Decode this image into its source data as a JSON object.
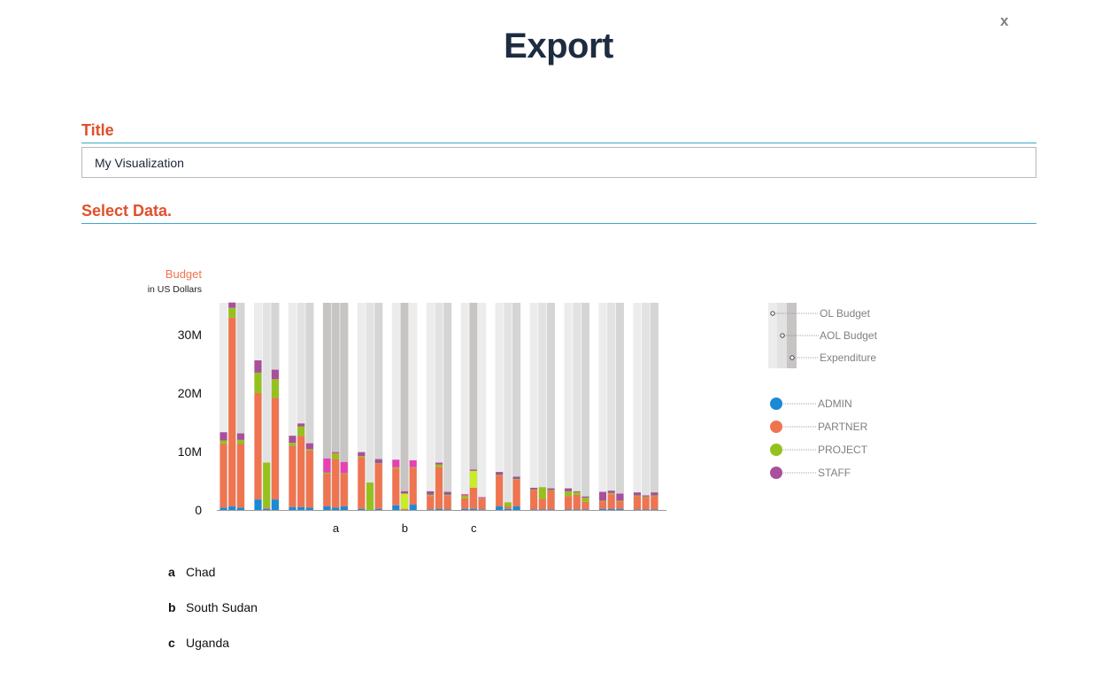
{
  "header": {
    "title": "Export",
    "close_label": "x"
  },
  "form": {
    "title_label": "Title",
    "title_value": "My Visualization",
    "select_label": "Select Data."
  },
  "chart_data": {
    "type": "bar",
    "ylabel": "Budget",
    "ylabel_unit": "in US Dollars",
    "ylim": [
      0,
      35000000
    ],
    "y_ticks": [
      {
        "value": 0,
        "label": "0"
      },
      {
        "value": 10000000,
        "label": "10M"
      },
      {
        "value": 20000000,
        "label": "20M"
      },
      {
        "value": 30000000,
        "label": "30M"
      }
    ],
    "grid": false,
    "stack_order": [
      "ADMIN",
      "PARTNER",
      "PROJECT",
      "STAFF"
    ],
    "colors": {
      "ADMIN": "#1b8ad6",
      "PARTNER": "#ef7450",
      "PROJECT": "#95c11f",
      "STAFF": "#a94f9c",
      "OL Budget": "#ececec",
      "AOL Budget": "#e2e2e2",
      "Expenditure": "#d5d5d5",
      "highlight_background": "#c7c4c4",
      "highlight_staff": "#e840b4",
      "highlight_project": "#c9ec28"
    },
    "budget_legend": [
      "OL Budget",
      "AOL Budget",
      "Expenditure"
    ],
    "category_legend": [
      "ADMIN",
      "PARTNER",
      "PROJECT",
      "STAFF"
    ],
    "groups": [
      {
        "marker": "",
        "bars": [
          {
            "ADMIN": 0.4,
            "PARTNER": 10.9,
            "PROJECT": 0.6,
            "STAFF": 1.4
          },
          {
            "ADMIN": 0.6,
            "PARTNER": 32.3,
            "PROJECT": 1.7,
            "STAFF": 0.9
          },
          {
            "ADMIN": 0.4,
            "PARTNER": 10.9,
            "PROJECT": 0.7,
            "STAFF": 1.1
          }
        ]
      },
      {
        "marker": "",
        "bars": [
          {
            "ADMIN": 1.8,
            "PARTNER": 18.2,
            "PROJECT": 3.5,
            "STAFF": 2.1
          },
          {
            "ADMIN": 0.2,
            "PARTNER": 0.2,
            "PROJECT": 7.7,
            "STAFF": 0
          },
          {
            "ADMIN": 1.8,
            "PARTNER": 17.4,
            "PROJECT": 3.2,
            "STAFF": 1.6
          }
        ]
      },
      {
        "marker": "",
        "bars": [
          {
            "ADMIN": 0.5,
            "PARTNER": 10.5,
            "PROJECT": 0.5,
            "STAFF": 1.2
          },
          {
            "ADMIN": 0.5,
            "PARTNER": 12.2,
            "PROJECT": 1.6,
            "STAFF": 0.5
          },
          {
            "ADMIN": 0.4,
            "PARTNER": 9.8,
            "PROJECT": 0.2,
            "STAFF": 1.0
          }
        ]
      },
      {
        "marker": "a",
        "highlight": "all",
        "bars": [
          {
            "ADMIN": 0.6,
            "PARTNER": 5.6,
            "PROJECT": 0.2,
            "STAFF": 2.4
          },
          {
            "ADMIN": 0.4,
            "PARTNER": 8.3,
            "PROJECT": 1.0,
            "STAFF": 0.2
          },
          {
            "ADMIN": 0.6,
            "PARTNER": 5.6,
            "PROJECT": 0.1,
            "STAFF": 1.9
          }
        ]
      },
      {
        "marker": "",
        "bars": [
          {
            "ADMIN": 0.2,
            "PARTNER": 8.8,
            "PROJECT": 0.2,
            "STAFF": 0.7
          },
          {
            "ADMIN": 0,
            "PARTNER": 0,
            "PROJECT": 4.7,
            "STAFF": 0
          },
          {
            "ADMIN": 0.2,
            "PARTNER": 7.7,
            "PROJECT": 0.1,
            "STAFF": 0.7
          }
        ]
      },
      {
        "marker": "b",
        "highlight": "tall",
        "bars": [
          {
            "ADMIN": 0.8,
            "PARTNER": 6.3,
            "PROJECT": 0.2,
            "STAFF": 1.3
          },
          {
            "ADMIN": 0,
            "PARTNER": 0.2,
            "PROJECT": 2.6,
            "STAFF": 0.4
          },
          {
            "ADMIN": 0.9,
            "PARTNER": 6.3,
            "PROJECT": 0.1,
            "STAFF": 1.2
          }
        ]
      },
      {
        "marker": "",
        "bars": [
          {
            "ADMIN": 0.1,
            "PARTNER": 2.3,
            "PROJECT": 0.2,
            "STAFF": 0.6
          },
          {
            "ADMIN": 0.2,
            "PARTNER": 7.2,
            "PROJECT": 0.4,
            "STAFF": 0.3
          },
          {
            "ADMIN": 0.1,
            "PARTNER": 2.3,
            "PROJECT": 0.2,
            "STAFF": 0.5
          }
        ]
      },
      {
        "marker": "c",
        "highlight": "tall",
        "bars": [
          {
            "ADMIN": 0.2,
            "PARTNER": 1.8,
            "PROJECT": 0.5,
            "STAFF": 0.2
          },
          {
            "ADMIN": 0.2,
            "PARTNER": 3.6,
            "PROJECT": 2.9,
            "STAFF": 0.2
          },
          {
            "ADMIN": 0.1,
            "PARTNER": 1.8,
            "PROJECT": 0.1,
            "STAFF": 0.2
          }
        ]
      },
      {
        "marker": "",
        "bars": [
          {
            "ADMIN": 0.6,
            "PARTNER": 5.3,
            "PROJECT": 0.1,
            "STAFF": 0.5
          },
          {
            "ADMIN": 0.2,
            "PARTNER": 0.4,
            "PROJECT": 0.7,
            "STAFF": 0
          },
          {
            "ADMIN": 0.6,
            "PARTNER": 4.6,
            "PROJECT": 0.1,
            "STAFF": 0.4
          }
        ]
      },
      {
        "marker": "",
        "bars": [
          {
            "ADMIN": 0.1,
            "PARTNER": 3.3,
            "PROJECT": 0.1,
            "STAFF": 0.3
          },
          {
            "ADMIN": 0.1,
            "PARTNER": 1.8,
            "PROJECT": 2.0,
            "STAFF": 0
          },
          {
            "ADMIN": 0.1,
            "PARTNER": 3.2,
            "PROJECT": 0.1,
            "STAFF": 0.3
          }
        ]
      },
      {
        "marker": "",
        "bars": [
          {
            "ADMIN": 0.1,
            "PARTNER": 2.3,
            "PROJECT": 0.8,
            "STAFF": 0.5
          },
          {
            "ADMIN": 0.1,
            "PARTNER": 2.5,
            "PROJECT": 0.5,
            "STAFF": 0.1
          },
          {
            "ADMIN": 0.1,
            "PARTNER": 1.3,
            "PROJECT": 0.7,
            "STAFF": 0.2
          }
        ]
      },
      {
        "marker": "",
        "bars": [
          {
            "ADMIN": 0.2,
            "PARTNER": 1.3,
            "PROJECT": 0.1,
            "STAFF": 1.5
          },
          {
            "ADMIN": 0.2,
            "PARTNER": 2.5,
            "PROJECT": 0.2,
            "STAFF": 0.4
          },
          {
            "ADMIN": 0.2,
            "PARTNER": 1.3,
            "PROJECT": 0.1,
            "STAFF": 1.2
          }
        ]
      },
      {
        "marker": "",
        "bars": [
          {
            "ADMIN": 0.1,
            "PARTNER": 2.3,
            "PROJECT": 0.1,
            "STAFF": 0.5
          },
          {
            "ADMIN": 0.1,
            "PARTNER": 2.1,
            "PROJECT": 0.1,
            "STAFF": 0.2
          },
          {
            "ADMIN": 0.1,
            "PARTNER": 2.3,
            "PROJECT": 0.1,
            "STAFF": 0.5
          }
        ]
      }
    ],
    "country_key": [
      {
        "marker": "a",
        "name": "Chad"
      },
      {
        "marker": "b",
        "name": "South Sudan"
      },
      {
        "marker": "c",
        "name": "Uganda"
      }
    ]
  }
}
